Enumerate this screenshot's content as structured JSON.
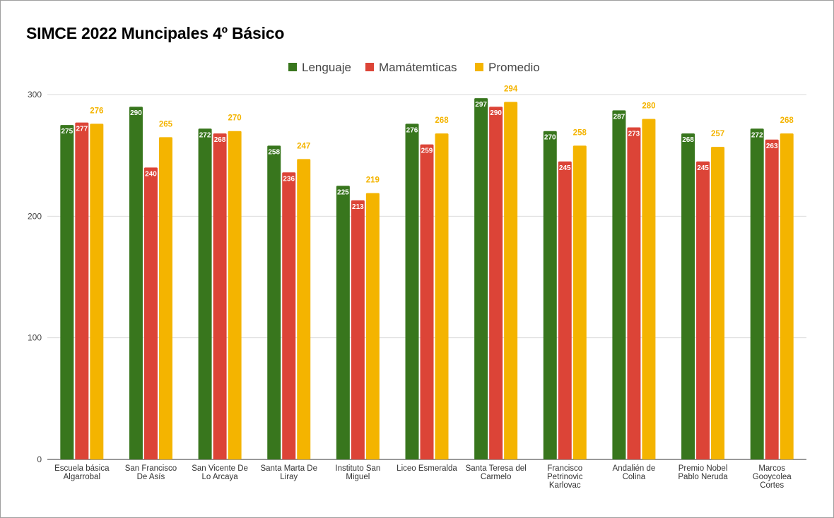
{
  "chart_data": {
    "type": "bar",
    "title": "SIMCE 2022 Muncipales 4º Básico",
    "categories": [
      [
        "Escuela básica",
        "Algarrobal"
      ],
      [
        "San Francisco",
        "De Asís"
      ],
      [
        "San Vicente De",
        "Lo Arcaya"
      ],
      [
        "Santa Marta De",
        "Liray"
      ],
      [
        "Instituto San",
        "Miguel"
      ],
      [
        "Liceo Esmeralda"
      ],
      [
        "Santa Teresa del",
        "Carmelo"
      ],
      [
        "Francisco",
        "Petrinovic",
        "Karlovac"
      ],
      [
        "Andalién de",
        "Colina"
      ],
      [
        "Premio Nobel",
        "Pablo Neruda"
      ],
      [
        "Marcos",
        "Gooycolea",
        "Cortes"
      ]
    ],
    "series": [
      {
        "name": "Lenguaje",
        "color": "#38761d",
        "label_inside": true,
        "values": [
          275,
          290,
          272,
          258,
          225,
          276,
          297,
          270,
          287,
          268,
          272
        ]
      },
      {
        "name": "Mamátemticas",
        "color": "#dc4437",
        "label_inside": true,
        "values": [
          277,
          240,
          268,
          236,
          213,
          259,
          290,
          245,
          273,
          245,
          263
        ]
      },
      {
        "name": "Promedio",
        "color": "#f4b400",
        "label_inside": false,
        "values": [
          276,
          265,
          270,
          247,
          219,
          268,
          294,
          258,
          280,
          257,
          268
        ]
      }
    ],
    "ylim": [
      0,
      300
    ],
    "yticks": [
      0,
      100,
      200,
      300
    ],
    "grid": true,
    "legend_position": "top-center"
  }
}
